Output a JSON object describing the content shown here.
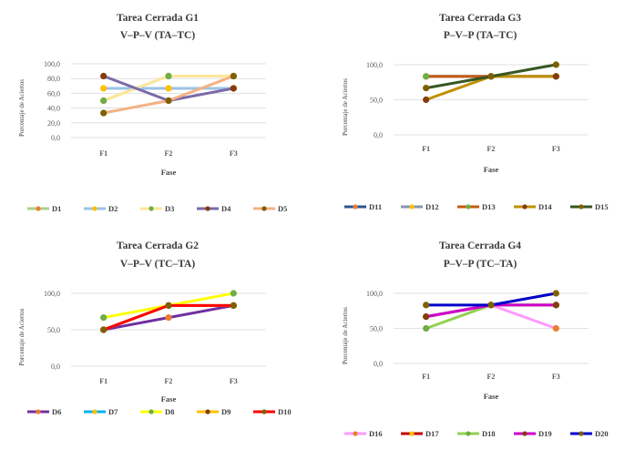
{
  "chart_data": [
    {
      "type": "line",
      "title": "Tarea Cerrada G1",
      "subtitle": "V–P–V   (TA–TC)",
      "xlabel": "Fase",
      "ylabel": "Porcentaje de Aciertos",
      "categories": [
        "F1",
        "F2",
        "F3"
      ],
      "yticks": [
        "0,0",
        "20,0",
        "40,0",
        "60,0",
        "80,0",
        "100,0"
      ],
      "ylim": [
        0,
        100
      ],
      "grid": true,
      "legend": "bottom",
      "series": [
        {
          "name": "D1",
          "color": "#a9d18e",
          "marker": "#ed7d31",
          "values": [
            50,
            83.3,
            83.3
          ]
        },
        {
          "name": "D2",
          "color": "#9dc3e6",
          "marker": "#ffc000",
          "values": [
            66.7,
            66.7,
            66.7
          ]
        },
        {
          "name": "D3",
          "color": "#ffe699",
          "marker": "#70ad47",
          "values": [
            50,
            83.3,
            83.3
          ]
        },
        {
          "name": "D4",
          "color": "#7a6aa8",
          "marker": "#843c0c",
          "values": [
            83.3,
            50,
            66.7
          ]
        },
        {
          "name": "D5",
          "color": "#f4b183",
          "marker": "#7f6000",
          "values": [
            33.3,
            50,
            83.3
          ]
        }
      ]
    },
    {
      "type": "line",
      "title": "Tarea Cerrada G3",
      "subtitle": "P–V–P   (TA–TC)",
      "xlabel": "Fase",
      "ylabel": "Porcentaje de Aciertos",
      "categories": [
        "F1",
        "F2",
        "F3"
      ],
      "yticks": [
        "0,0",
        "50,0",
        "100,0"
      ],
      "ylim": [
        0,
        100
      ],
      "grid": true,
      "legend": "bottom",
      "series": [
        {
          "name": "D11",
          "color": "#2e5597",
          "marker": "#ed7d31",
          "values": [
            83.3,
            83.3,
            83.3
          ]
        },
        {
          "name": "D12",
          "color": "#8497b0",
          "marker": "#ffc000",
          "values": [
            83.3,
            83.3,
            83.3
          ]
        },
        {
          "name": "D13",
          "color": "#c55a11",
          "marker": "#70ad47",
          "values": [
            83.3,
            83.3,
            83.3
          ]
        },
        {
          "name": "D14",
          "color": "#bf9000",
          "marker": "#843c0c",
          "values": [
            50,
            83.3,
            83.3
          ]
        },
        {
          "name": "D15",
          "color": "#375623",
          "marker": "#7f6000",
          "values": [
            66.7,
            83.3,
            100
          ]
        }
      ]
    },
    {
      "type": "line",
      "title": "Tarea Cerrada G2",
      "subtitle": "V–P–V   (TC–TA)",
      "xlabel": "Fase",
      "ylabel": "Porcentaje de Aciertos",
      "categories": [
        "F1",
        "F2",
        "F3"
      ],
      "yticks": [
        "0,0",
        "50,0",
        "100,0"
      ],
      "ylim": [
        0,
        100
      ],
      "grid": true,
      "legend": "bottom",
      "series": [
        {
          "name": "D6",
          "color": "#7030a0",
          "marker": "#ed7d31",
          "values": [
            50,
            66.7,
            83.3
          ]
        },
        {
          "name": "D7",
          "color": "#00b0f0",
          "marker": "#ffc000",
          "values": [
            50,
            83.3,
            83.3
          ]
        },
        {
          "name": "D8",
          "color": "#ffff00",
          "marker": "#70ad47",
          "values": [
            66.7,
            83.3,
            100
          ]
        },
        {
          "name": "D9",
          "color": "#ffc000",
          "marker": "#843c0c",
          "values": [
            50,
            83.3,
            83.3
          ]
        },
        {
          "name": "D10",
          "color": "#ff0000",
          "marker": "#7f6000",
          "values": [
            50,
            83.3,
            83.3
          ]
        }
      ]
    },
    {
      "type": "line",
      "title": "Tarea Cerrada G4",
      "subtitle": "P–V–P   (TC–TA)",
      "xlabel": "Fase",
      "ylabel": "Porcentaje de Aciertos",
      "categories": [
        "F1",
        "F2",
        "F3"
      ],
      "yticks": [
        "0,0",
        "50,0",
        "100,0"
      ],
      "ylim": [
        0,
        100
      ],
      "grid": true,
      "legend": "bottom",
      "series": [
        {
          "name": "D16",
          "color": "#ff99ff",
          "marker": "#ed7d31",
          "values": [
            66.7,
            83.3,
            50
          ]
        },
        {
          "name": "D17",
          "color": "#c00000",
          "marker": "#ffc000",
          "values": [
            66.7,
            83.3,
            83.3
          ]
        },
        {
          "name": "D18",
          "color": "#92d050",
          "marker": "#70ad47",
          "values": [
            50,
            83.3,
            83.3
          ]
        },
        {
          "name": "D19",
          "color": "#cc00cc",
          "marker": "#843c0c",
          "values": [
            66.7,
            83.3,
            83.3
          ]
        },
        {
          "name": "D20",
          "color": "#0000cc",
          "marker": "#7f6000",
          "values": [
            83.3,
            83.3,
            100
          ]
        }
      ]
    }
  ]
}
